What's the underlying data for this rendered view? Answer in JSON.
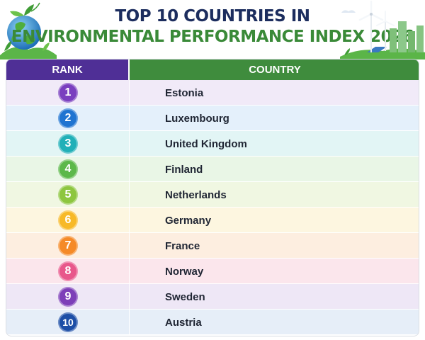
{
  "header": {
    "title_line1": "TOP 10 COUNTRIES IN",
    "title_line2": "ENVIRONMENTAL PERFORMANCE INDEX 2026",
    "title_line1_color": "#1c2d5e",
    "title_line2_color": "#3a8a38"
  },
  "table": {
    "col_rank": "RANK",
    "col_country": "COUNTRY",
    "rank_header_color": "#4f2f96",
    "country_header_color": "#3f8c3d",
    "rows": [
      {
        "rank": "1",
        "country": "Estonia",
        "badge_color": "#7a3fbf",
        "row_color": "#f1eaf8"
      },
      {
        "rank": "2",
        "country": "Luxembourg",
        "badge_color": "#1f74d1",
        "row_color": "#e4f0fb"
      },
      {
        "rank": "3",
        "country": "United Kingdom",
        "badge_color": "#21b0b8",
        "row_color": "#e2f5f5"
      },
      {
        "rank": "4",
        "country": "Finland",
        "badge_color": "#5cb84a",
        "row_color": "#e9f6e6"
      },
      {
        "rank": "5",
        "country": "Netherlands",
        "badge_color": "#8dc63f",
        "row_color": "#f0f7e2"
      },
      {
        "rank": "6",
        "country": "Germany",
        "badge_color": "#f7b928",
        "row_color": "#fdf6e0"
      },
      {
        "rank": "7",
        "country": "France",
        "badge_color": "#f58a28",
        "row_color": "#fdeee0"
      },
      {
        "rank": "8",
        "country": "Norway",
        "badge_color": "#e8578b",
        "row_color": "#fbe6ec"
      },
      {
        "rank": "9",
        "country": "Sweden",
        "badge_color": "#7d3fb8",
        "row_color": "#eee7f6"
      },
      {
        "rank": "10",
        "country": "Austria",
        "badge_color": "#1c4ea6",
        "row_color": "#e6eef8"
      }
    ]
  },
  "decorations": {
    "left_icon": "earth-globe-with-leaves-icon",
    "right_icon": "wind-turbines-and-city-icon"
  }
}
